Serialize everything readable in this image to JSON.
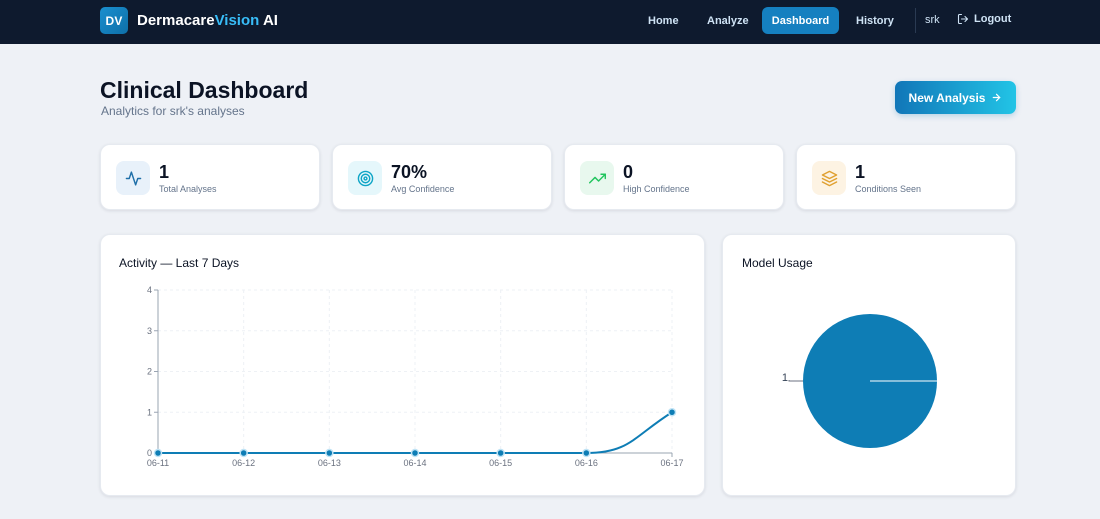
{
  "nav": {
    "logo_badge": "DV",
    "brand_main": "Dermacare",
    "brand_accent": "Vision",
    "brand_suffix": "AI",
    "links": [
      {
        "label": "Home",
        "active": false
      },
      {
        "label": "Analyze",
        "active": false
      },
      {
        "label": "Dashboard",
        "active": true
      },
      {
        "label": "History",
        "active": false
      }
    ],
    "user": "srk",
    "logout_label": "Logout"
  },
  "header": {
    "title": "Clinical Dashboard",
    "subtitle": "Analytics for srk's analyses",
    "new_analysis_label": "New Analysis"
  },
  "stats": [
    {
      "value": "1",
      "label": "Total Analyses",
      "icon": "activity-icon",
      "color": "#1f6fa8",
      "bg": "#e8f1fa"
    },
    {
      "value": "70%",
      "label": "Avg Confidence",
      "icon": "target-icon",
      "color": "#0ea5c6",
      "bg": "#e5f7fb"
    },
    {
      "value": "0",
      "label": "High Confidence",
      "icon": "trending-up-icon",
      "color": "#22c55e",
      "bg": "#e8f8ee"
    },
    {
      "value": "1",
      "label": "Conditions Seen",
      "icon": "layers-icon",
      "color": "#e0a030",
      "bg": "#fdf3e3"
    }
  ],
  "activity_panel": {
    "title": "Activity — Last 7 Days"
  },
  "model_panel": {
    "title": "Model Usage"
  },
  "colors": {
    "primary": "#0e7db5",
    "nav_bg": "#0e1a2e",
    "page_bg": "#eef1f6"
  },
  "chart_data": [
    {
      "type": "line",
      "title": "Activity — Last 7 Days",
      "x": [
        "06-11",
        "06-12",
        "06-13",
        "06-14",
        "06-15",
        "06-16",
        "06-17"
      ],
      "series": [
        {
          "values": [
            0,
            0,
            0,
            0,
            0,
            0,
            1
          ]
        }
      ],
      "ylim": [
        0,
        4
      ],
      "yticks": [
        0,
        1,
        2,
        3,
        4
      ],
      "grid": true
    },
    {
      "type": "pie",
      "title": "Model Usage",
      "values": [
        1
      ],
      "data_labels": [
        "1"
      ]
    }
  ]
}
